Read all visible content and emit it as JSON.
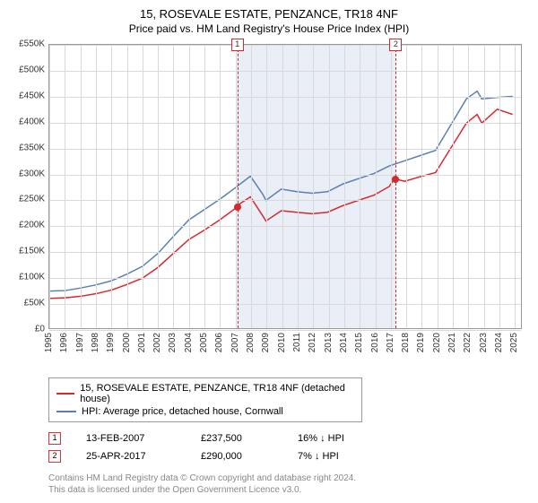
{
  "title": "15, ROSEVALE ESTATE, PENZANCE, TR18 4NF",
  "subtitle": "Price paid vs. HM Land Registry's House Price Index (HPI)",
  "chart": {
    "type": "line",
    "background_color": "#ffffff",
    "grid_color": "#d9d9d9",
    "shade_color": "#e9eef7",
    "xlim": [
      1995,
      2025.5
    ],
    "ylim": [
      0,
      550
    ],
    "y_unit_prefix": "£",
    "y_unit_suffix": "K",
    "yticks": [
      0,
      50,
      100,
      150,
      200,
      250,
      300,
      350,
      400,
      450,
      500,
      550
    ],
    "xticks": [
      1995,
      1996,
      1997,
      1998,
      1999,
      2000,
      2001,
      2002,
      2003,
      2004,
      2005,
      2006,
      2007,
      2008,
      2009,
      2010,
      2011,
      2012,
      2013,
      2014,
      2015,
      2016,
      2017,
      2018,
      2019,
      2020,
      2021,
      2022,
      2023,
      2024,
      2025
    ],
    "label_fontsize": 10,
    "shade_range": [
      2007.12,
      2017.32
    ],
    "series": [
      {
        "name": "hpi",
        "label": "HPI: Average price, detached house, Cornwall",
        "color": "#5b7fb5",
        "line_width": 1.5,
        "data": [
          [
            1995,
            72
          ],
          [
            1996,
            73
          ],
          [
            1997,
            78
          ],
          [
            1998,
            84
          ],
          [
            1999,
            92
          ],
          [
            2000,
            105
          ],
          [
            2001,
            120
          ],
          [
            2002,
            145
          ],
          [
            2003,
            178
          ],
          [
            2004,
            210
          ],
          [
            2005,
            230
          ],
          [
            2006,
            250
          ],
          [
            2007,
            272
          ],
          [
            2008,
            295
          ],
          [
            2008.8,
            260
          ],
          [
            2009,
            248
          ],
          [
            2010,
            270
          ],
          [
            2011,
            265
          ],
          [
            2012,
            262
          ],
          [
            2013,
            265
          ],
          [
            2014,
            280
          ],
          [
            2015,
            290
          ],
          [
            2016,
            300
          ],
          [
            2017,
            315
          ],
          [
            2018,
            325
          ],
          [
            2019,
            335
          ],
          [
            2020,
            345
          ],
          [
            2021,
            395
          ],
          [
            2022,
            445
          ],
          [
            2022.7,
            460
          ],
          [
            2023,
            445
          ],
          [
            2024,
            448
          ],
          [
            2025,
            450
          ]
        ]
      },
      {
        "name": "price-paid",
        "label": "15, ROSEVALE ESTATE, PENZANCE, TR18 4NF (detached house)",
        "color": "#d6292c",
        "line_width": 1.5,
        "data": [
          [
            1995,
            58
          ],
          [
            1996,
            59
          ],
          [
            1997,
            62
          ],
          [
            1998,
            67
          ],
          [
            1999,
            74
          ],
          [
            2000,
            85
          ],
          [
            2001,
            97
          ],
          [
            2002,
            118
          ],
          [
            2003,
            145
          ],
          [
            2004,
            172
          ],
          [
            2005,
            190
          ],
          [
            2006,
            210
          ],
          [
            2007,
            232
          ],
          [
            2007.12,
            237.5
          ],
          [
            2008,
            255
          ],
          [
            2008.8,
            218
          ],
          [
            2009,
            208
          ],
          [
            2010,
            228
          ],
          [
            2011,
            225
          ],
          [
            2012,
            222
          ],
          [
            2013,
            225
          ],
          [
            2014,
            238
          ],
          [
            2015,
            248
          ],
          [
            2016,
            258
          ],
          [
            2017,
            275
          ],
          [
            2017.32,
            290
          ],
          [
            2018,
            285
          ],
          [
            2019,
            294
          ],
          [
            2020,
            302
          ],
          [
            2021,
            350
          ],
          [
            2022,
            398
          ],
          [
            2022.7,
            415
          ],
          [
            2023,
            398
          ],
          [
            2024,
            425
          ],
          [
            2025,
            415
          ]
        ]
      }
    ],
    "event_lines": [
      {
        "id": "1",
        "x": 2007.12,
        "color": "#d6292c"
      },
      {
        "id": "2",
        "x": 2017.32,
        "color": "#d6292c"
      }
    ],
    "event_points": [
      {
        "x": 2007.12,
        "y": 237.5,
        "color": "#d6292c"
      },
      {
        "x": 2017.32,
        "y": 290,
        "color": "#d6292c"
      }
    ]
  },
  "legend": {
    "items": [
      {
        "color": "#d6292c",
        "label": "15, ROSEVALE ESTATE, PENZANCE, TR18 4NF (detached house)"
      },
      {
        "color": "#5b7fb5",
        "label": "HPI: Average price, detached house, Cornwall"
      }
    ]
  },
  "events": [
    {
      "id": "1",
      "date": "13-FEB-2007",
      "price": "£237,500",
      "delta": "16% ↓ HPI"
    },
    {
      "id": "2",
      "date": "25-APR-2017",
      "price": "£290,000",
      "delta": "7% ↓ HPI"
    }
  ],
  "footer": {
    "line1": "Contains HM Land Registry data © Crown copyright and database right 2024.",
    "line2": "This data is licensed under the Open Government Licence v3.0."
  }
}
